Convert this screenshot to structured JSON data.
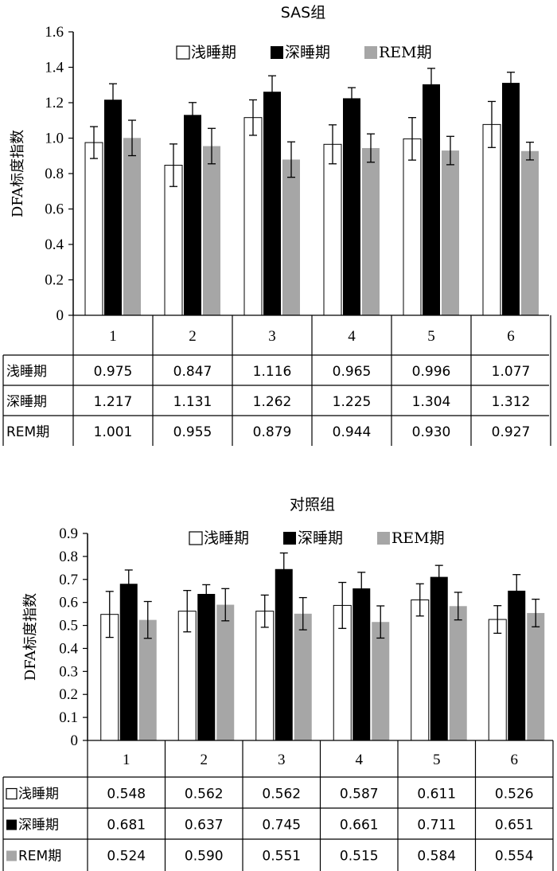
{
  "chart_data": [
    {
      "type": "bar",
      "title": "SAS组",
      "xlabel": "",
      "ylabel": "DFA标度指数",
      "ylim": [
        0,
        1.6
      ],
      "yticks": [
        "0",
        "0.2",
        "0.4",
        "0.6",
        "0.8",
        "1.0",
        "1.2",
        "1.4",
        "1.6"
      ],
      "categories": [
        "1",
        "2",
        "3",
        "4",
        "5",
        "6"
      ],
      "legend_position": "top",
      "grid": false,
      "series": [
        {
          "name": "浅睡期",
          "color": "#ffffff",
          "values": [
            0.975,
            0.847,
            1.116,
            0.965,
            0.996,
            1.077
          ],
          "labels": [
            "0.975",
            "0.847",
            "1.116",
            "0.965",
            "0.996",
            "1.077"
          ],
          "error": [
            0.09,
            0.12,
            0.1,
            0.11,
            0.12,
            0.13
          ]
        },
        {
          "name": "深睡期",
          "color": "#000000",
          "values": [
            1.217,
            1.131,
            1.262,
            1.225,
            1.304,
            1.312
          ],
          "labels": [
            "1.217",
            "1.131",
            "1.262",
            "1.225",
            "1.304",
            "1.312"
          ],
          "error": [
            0.09,
            0.07,
            0.09,
            0.06,
            0.09,
            0.06
          ]
        },
        {
          "name": "REM期",
          "color": "#a6a6a6",
          "values": [
            1.001,
            0.955,
            0.879,
            0.944,
            0.93,
            0.927
          ],
          "labels": [
            "1.001",
            "0.955",
            "0.879",
            "0.944",
            "0.930",
            "0.927"
          ],
          "error": [
            0.1,
            0.1,
            0.1,
            0.08,
            0.08,
            0.05
          ]
        }
      ],
      "table": {
        "row_headers": [
          "浅睡期",
          "深睡期",
          "REM期"
        ],
        "show_markers": false
      }
    },
    {
      "type": "bar",
      "title": "对照组",
      "xlabel": "",
      "ylabel": "DFA标度指数",
      "ylim": [
        0,
        0.9
      ],
      "yticks": [
        "0",
        "0.1",
        "0.2",
        "0.3",
        "0.4",
        "0.5",
        "0.6",
        "0.7",
        "0.8",
        "0.9"
      ],
      "categories": [
        "1",
        "2",
        "3",
        "4",
        "5",
        "6"
      ],
      "legend_position": "top",
      "grid": false,
      "series": [
        {
          "name": "浅睡期",
          "color": "#ffffff",
          "values": [
            0.548,
            0.562,
            0.562,
            0.587,
            0.611,
            0.526
          ],
          "labels": [
            "0.548",
            "0.562",
            "0.562",
            "0.587",
            "0.611",
            "0.526"
          ],
          "error": [
            0.1,
            0.09,
            0.07,
            0.1,
            0.07,
            0.06
          ]
        },
        {
          "name": "深睡期",
          "color": "#000000",
          "values": [
            0.681,
            0.637,
            0.745,
            0.661,
            0.711,
            0.651
          ],
          "labels": [
            "0.681",
            "0.637",
            "0.745",
            "0.661",
            "0.711",
            "0.651"
          ],
          "error": [
            0.06,
            0.04,
            0.07,
            0.07,
            0.05,
            0.07
          ]
        },
        {
          "name": "REM期",
          "color": "#a6a6a6",
          "values": [
            0.524,
            0.59,
            0.551,
            0.515,
            0.584,
            0.554
          ],
          "labels": [
            "0.524",
            "0.590",
            "0.551",
            "0.515",
            "0.584",
            "0.554"
          ],
          "error": [
            0.08,
            0.07,
            0.07,
            0.07,
            0.06,
            0.06
          ]
        }
      ],
      "table": {
        "row_headers": [
          "浅睡期",
          "深睡期",
          "REM期"
        ],
        "show_markers": true
      }
    }
  ]
}
